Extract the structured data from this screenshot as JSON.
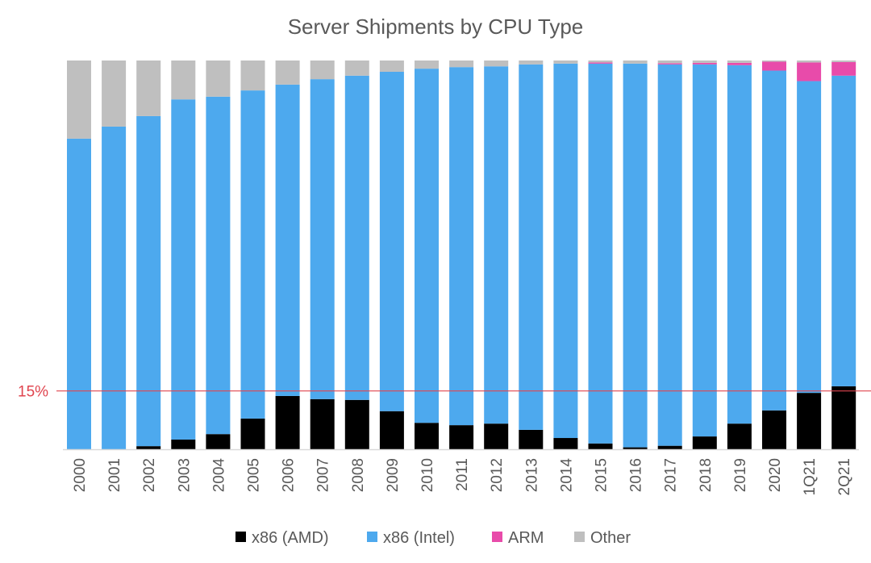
{
  "chart_data": {
    "type": "bar",
    "stacked": true,
    "normalized_percent": true,
    "title": "Server Shipments by CPU Type",
    "xlabel": "",
    "ylabel": "",
    "ylim": [
      0,
      100
    ],
    "grid": false,
    "legend_position": "bottom",
    "categories": [
      "2000",
      "2001",
      "2002",
      "2003",
      "2004",
      "2005",
      "2006",
      "2007",
      "2008",
      "2009",
      "2010",
      "2011",
      "2012",
      "2013",
      "2014",
      "2015",
      "2016",
      "2017",
      "2018",
      "2019",
      "2020",
      "1Q21",
      "2Q21"
    ],
    "series": [
      {
        "name": "x86 (AMD)",
        "color": "#000000",
        "values": [
          0,
          0,
          0.8,
          2.5,
          3.9,
          7.9,
          13.7,
          12.9,
          12.7,
          9.8,
          6.8,
          6.2,
          6.6,
          5.0,
          2.9,
          1.5,
          0.5,
          0.9,
          3.3,
          6.6,
          10.0,
          14.5,
          16.2
        ]
      },
      {
        "name": "x86 (Intel)",
        "color": "#4DA9EE",
        "values": [
          79.9,
          83.0,
          84.9,
          87.5,
          86.8,
          84.4,
          80.1,
          82.3,
          83.4,
          87.3,
          91.1,
          92.1,
          91.9,
          94.0,
          96.3,
          97.7,
          98.7,
          98.1,
          95.7,
          92.2,
          87.4,
          80.2,
          79.9
        ]
      },
      {
        "name": "ARM",
        "color": "#E84BAA",
        "values": [
          0,
          0,
          0,
          0,
          0,
          0,
          0,
          0,
          0,
          0,
          0,
          0,
          0,
          0,
          0,
          0.3,
          0,
          0.3,
          0.4,
          0.6,
          2.3,
          4.8,
          3.5
        ]
      },
      {
        "name": "Other",
        "color": "#BFBFBF",
        "values": [
          20.1,
          17.0,
          14.3,
          10.0,
          9.3,
          7.7,
          6.2,
          4.8,
          3.9,
          2.9,
          2.1,
          1.7,
          1.5,
          1.0,
          0.8,
          0.5,
          0.8,
          0.7,
          0.6,
          0.6,
          0.3,
          0.5,
          0.4
        ]
      }
    ],
    "annotations": [
      {
        "type": "hline",
        "value": 15,
        "label": "15%",
        "color": "#E0454F"
      }
    ]
  }
}
